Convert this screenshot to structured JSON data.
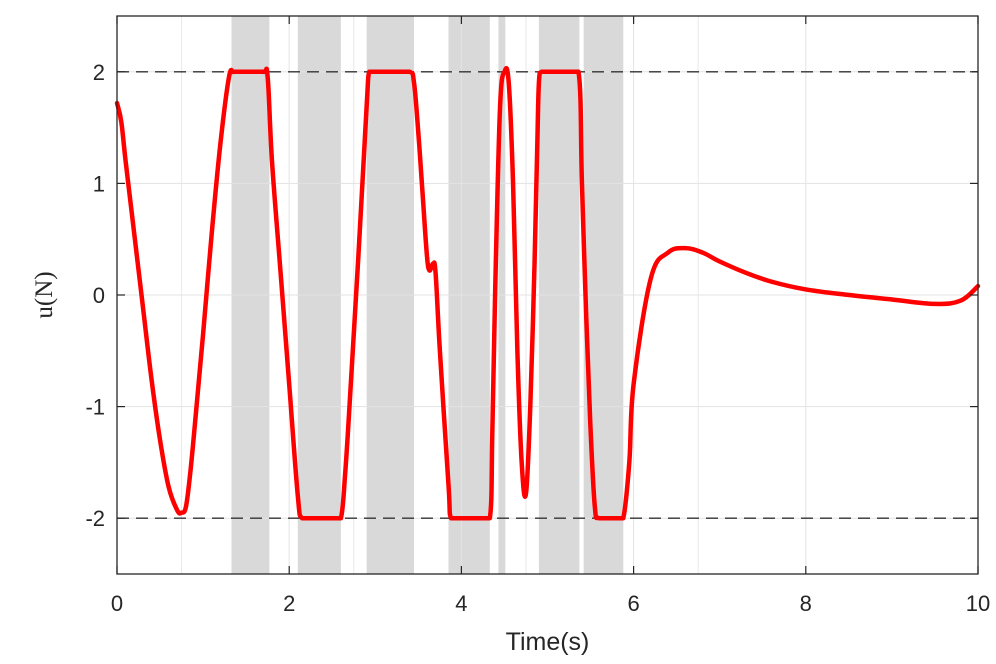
{
  "chart_data": {
    "type": "line",
    "xlabel": "Time(s)",
    "ylabel": "u(N)",
    "xlim": [
      0,
      10
    ],
    "ylim": [
      -2.5,
      2.5
    ],
    "xticks": [
      0,
      2,
      4,
      6,
      8,
      10
    ],
    "xtick_labels": [
      "0",
      "2",
      "4",
      "6",
      "8",
      "10"
    ],
    "yticks": [
      -2,
      -1,
      0,
      1,
      2
    ],
    "ytick_labels": [
      "-2",
      "-1",
      "0",
      "1",
      "2"
    ],
    "grid": true,
    "bounds": [
      -2,
      2
    ],
    "shaded_intervals": [
      [
        1.33,
        1.77
      ],
      [
        2.1,
        2.6
      ],
      [
        2.9,
        3.45
      ],
      [
        3.85,
        4.33
      ],
      [
        4.43,
        4.51
      ],
      [
        4.9,
        5.37
      ],
      [
        5.42,
        5.88
      ]
    ],
    "series": [
      {
        "color": "#ff0000",
        "x": [
          0,
          0.05,
          0.1,
          0.2,
          0.3,
          0.4,
          0.5,
          0.6,
          0.7,
          0.75,
          0.8,
          0.85,
          0.9,
          1.0,
          1.1,
          1.2,
          1.3,
          1.35,
          1.4,
          1.5,
          1.7,
          1.75,
          1.8,
          1.9,
          2.0,
          2.1,
          2.15,
          2.3,
          2.5,
          2.6,
          2.65,
          2.7,
          2.8,
          2.9,
          2.93,
          3.0,
          3.2,
          3.4,
          3.45,
          3.5,
          3.55,
          3.6,
          3.63,
          3.67,
          3.7,
          3.75,
          3.85,
          3.88,
          4.0,
          4.2,
          4.33,
          4.36,
          4.4,
          4.45,
          4.5,
          4.55,
          4.6,
          4.65,
          4.7,
          4.75,
          4.8,
          4.85,
          4.88,
          4.9,
          4.93,
          5.0,
          5.2,
          5.36,
          5.4,
          5.45,
          5.5,
          5.55,
          5.6,
          5.8,
          5.88,
          5.95,
          6.0,
          6.2,
          6.4,
          6.6,
          6.8,
          7.0,
          7.3,
          7.6,
          8.0,
          8.5,
          9.0,
          9.5,
          9.8,
          10.0
        ],
        "y": [
          1.72,
          1.55,
          1.2,
          0.55,
          -0.1,
          -0.75,
          -1.3,
          -1.72,
          -1.93,
          -1.95,
          -1.9,
          -1.6,
          -1.2,
          -0.35,
          0.55,
          1.35,
          1.95,
          2.0,
          2.0,
          2.0,
          2.0,
          1.95,
          1.2,
          0.2,
          -0.8,
          -1.8,
          -2.0,
          -2.0,
          -2.0,
          -2.0,
          -1.6,
          -1.0,
          0.3,
          1.7,
          2.0,
          2.0,
          2.0,
          2.0,
          1.9,
          1.45,
          0.9,
          0.35,
          0.22,
          0.28,
          0.2,
          -0.5,
          -1.7,
          -2.0,
          -2.0,
          -2.0,
          -2.0,
          -1.2,
          0.3,
          1.7,
          2.0,
          1.9,
          1.0,
          -0.5,
          -1.5,
          -1.78,
          -1.0,
          0.3,
          1.3,
          1.9,
          2.0,
          2.0,
          2.0,
          2.0,
          1.0,
          -0.2,
          -1.2,
          -1.9,
          -2.0,
          -2.0,
          -2.0,
          -1.5,
          -0.8,
          0.15,
          0.38,
          0.42,
          0.38,
          0.3,
          0.2,
          0.12,
          0.05,
          0.0,
          -0.04,
          -0.08,
          -0.05,
          0.08
        ]
      }
    ]
  }
}
